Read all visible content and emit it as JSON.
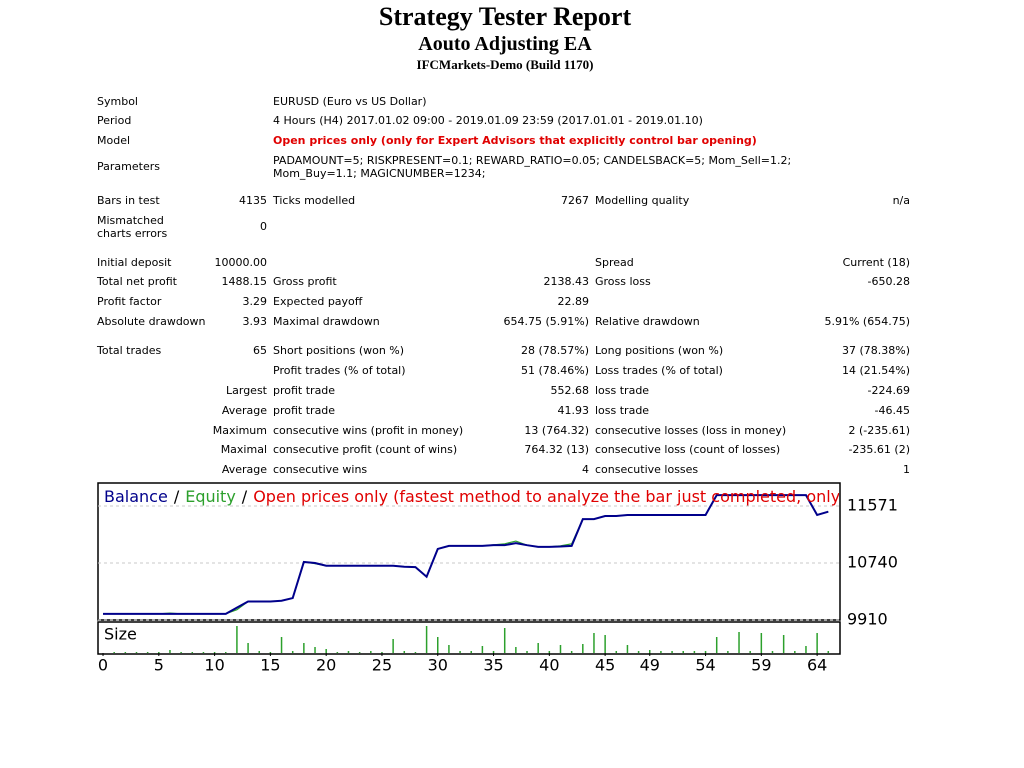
{
  "header": {
    "title": "Strategy Tester Report",
    "subtitle": "Aouto Adjusting EA",
    "broker": "IFCMarkets-Demo (Build 1170)"
  },
  "info": [
    [
      "Symbol",
      "EURUSD (Euro vs US Dollar)"
    ],
    [
      "Period",
      "4 Hours (H4) 2017.01.02 09:00 - 2019.01.09 23:59 (2017.01.01 - 2019.01.10)"
    ],
    [
      "Model",
      "Open prices only (only for Expert Advisors that explicitly control bar opening)"
    ],
    [
      "Parameters",
      "PADAMOUNT=5; RISKPRESENT=0.1; REWARD_RATIO=0.05; CANDELSBACK=5; Mom_Sell=1.2; Mom_Buy=1.1; MAGICNUMBER=1234;"
    ]
  ],
  "stats": [
    [
      "Bars in test",
      "4135",
      "Ticks modelled",
      "7267",
      "Modelling quality",
      "n/a"
    ],
    [
      "Mismatched charts errors",
      "0",
      null,
      null,
      null,
      null
    ],
    [
      "Initial deposit",
      "10000.00",
      null,
      null,
      "Spread",
      "Current (18)"
    ],
    [
      "Total net profit",
      "1488.15",
      "Gross profit",
      "2138.43",
      "Gross loss",
      "-650.28"
    ],
    [
      "Profit factor",
      "3.29",
      "Expected payoff",
      "22.89",
      null,
      null
    ],
    [
      "Absolute drawdown",
      "3.93",
      "Maximal drawdown",
      "654.75 (5.91%)",
      "Relative drawdown",
      "5.91% (654.75)"
    ],
    [
      "Total trades",
      "65",
      "Short positions (won %)",
      "28 (78.57%)",
      "Long positions (won %)",
      "37 (78.38%)"
    ],
    [
      null,
      null,
      "Profit trades (% of total)",
      "51 (78.46%)",
      "Loss trades (% of total)",
      "14 (21.54%)"
    ],
    [
      null,
      "Largest",
      "profit trade",
      "552.68",
      "loss trade",
      "-224.69"
    ],
    [
      null,
      "Average",
      "profit trade",
      "41.93",
      "loss trade",
      "-46.45"
    ],
    [
      null,
      "Maximum",
      "consecutive wins (profit in money)",
      "13 (764.32)",
      "consecutive losses (loss in money)",
      "2 (-235.61)"
    ],
    [
      null,
      "Maximal",
      "consecutive profit (count of wins)",
      "764.32 (13)",
      "consecutive loss (count of losses)",
      "-235.61 (2)"
    ],
    [
      null,
      "Average",
      "consecutive wins",
      "4",
      "consecutive losses",
      "1"
    ]
  ],
  "chart_data": {
    "type": "line",
    "legend_separator": "/",
    "mode_note": "Open prices only (fastest method to analyze the bar just completed, only for EAs that",
    "x": [
      0,
      1,
      2,
      3,
      4,
      5,
      6,
      7,
      8,
      9,
      10,
      11,
      12,
      13,
      14,
      15,
      16,
      17,
      18,
      19,
      20,
      21,
      22,
      23,
      24,
      25,
      26,
      27,
      28,
      29,
      30,
      31,
      32,
      33,
      34,
      35,
      36,
      37,
      38,
      39,
      40,
      41,
      42,
      43,
      44,
      45,
      46,
      47,
      48,
      49,
      50,
      51,
      52,
      53,
      54,
      55,
      56,
      57,
      58,
      59,
      60,
      61,
      62,
      63,
      64,
      65
    ],
    "series": [
      {
        "name": "Balance",
        "color": "#00008b",
        "values": [
          10000,
          10000,
          10000,
          10000,
          10000,
          10000,
          10000,
          10000,
          10000,
          10000,
          10000,
          10000,
          10090,
          10180,
          10180,
          10180,
          10190,
          10230,
          10755,
          10740,
          10700,
          10700,
          10700,
          10700,
          10700,
          10700,
          10700,
          10685,
          10680,
          10540,
          10945,
          10990,
          10990,
          10990,
          10990,
          11000,
          11000,
          11030,
          11000,
          10975,
          10975,
          10980,
          10990,
          11380,
          11380,
          11425,
          11425,
          11440,
          11440,
          11440,
          11440,
          11440,
          11440,
          11440,
          11440,
          11730,
          11730,
          11730,
          11730,
          11730,
          11730,
          11730,
          11730,
          11730,
          11440,
          11488
        ]
      },
      {
        "name": "Equity",
        "color": "#2ca02c",
        "values": [
          10000,
          10000,
          10000,
          10000,
          10000,
          10000,
          10010,
          10000,
          10000,
          10000,
          10000,
          10000,
          10060,
          10180,
          10180,
          10180,
          10190,
          10230,
          10760,
          10730,
          10700,
          10700,
          10700,
          10700,
          10700,
          10700,
          10700,
          10685,
          10680,
          10540,
          10945,
          10990,
          10990,
          10990,
          10990,
          11005,
          11020,
          11060,
          11000,
          10975,
          10975,
          10990,
          11020,
          11380,
          11380,
          11425,
          11425,
          11440,
          11440,
          11440,
          11440,
          11440,
          11440,
          11440,
          11440,
          11730,
          11730,
          11730,
          11730,
          11730,
          11730,
          11730,
          11730,
          11730,
          11440,
          11488
        ]
      }
    ],
    "size_label": "Size",
    "size_color": "#2ca02c",
    "sizes": [
      null,
      1,
      1,
      1,
      1,
      1,
      3,
      1,
      1,
      1,
      1,
      1,
      27,
      10,
      2,
      1,
      16,
      2,
      10,
      6,
      4,
      1,
      2,
      1,
      2,
      1,
      14,
      2,
      1,
      27,
      16,
      8,
      2,
      2,
      7,
      2,
      25,
      6,
      2,
      10,
      2,
      8,
      2,
      9,
      20,
      18,
      2,
      8,
      2,
      3,
      2,
      2,
      2,
      2,
      2,
      16,
      2,
      21,
      2,
      20,
      2,
      18,
      2,
      7,
      20,
      2
    ],
    "sizelim": [
      0,
      30
    ],
    "xlim": [
      -0.45,
      66.05
    ],
    "xticks": [
      0,
      5,
      10,
      15,
      20,
      25,
      30,
      35,
      40,
      45,
      49,
      54,
      59,
      64
    ],
    "ylim": [
      9910,
      11906
    ],
    "yticks": [
      9910,
      10740,
      11571
    ],
    "grid": true
  }
}
